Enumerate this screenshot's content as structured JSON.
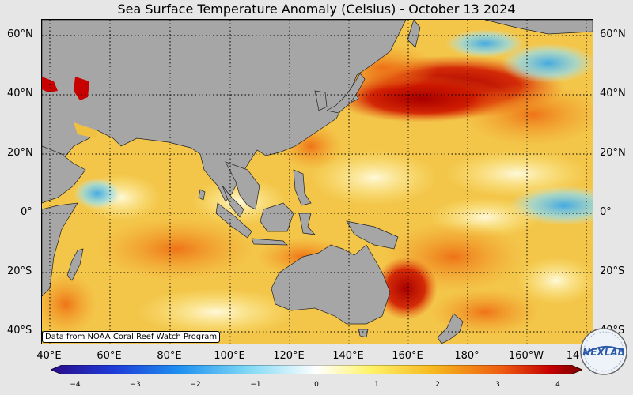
{
  "title": "Sea Surface Temperature Anomaly (Celsius) - October 13 2024",
  "lat_labels": [
    "60°N",
    "40°N",
    "20°N",
    "0°",
    "20°S",
    "40°S"
  ],
  "lon_labels": [
    "40°E",
    "60°E",
    "80°E",
    "100°E",
    "120°E",
    "140°E",
    "160°E",
    "180°",
    "160°W",
    "14"
  ],
  "credit": "Data from NOAA Coral Reef Watch Program",
  "colorbar": {
    "ticks": [
      "−4",
      "−3",
      "−2",
      "−1",
      "0",
      "1",
      "2",
      "3",
      "4"
    ],
    "colors": [
      "#2a0a8a",
      "#1e3cd8",
      "#1e8ff0",
      "#7fd8f5",
      "#ffffff",
      "#fff36a",
      "#f6b81e",
      "#ee5a10",
      "#c40000",
      "#7a0000"
    ]
  },
  "logo_text": "NEXLAB",
  "colors": {
    "land": "#a6a6a6",
    "ocean_base": "#f3c64a",
    "hot": "#b40000",
    "cool": "#5ec8f0"
  }
}
